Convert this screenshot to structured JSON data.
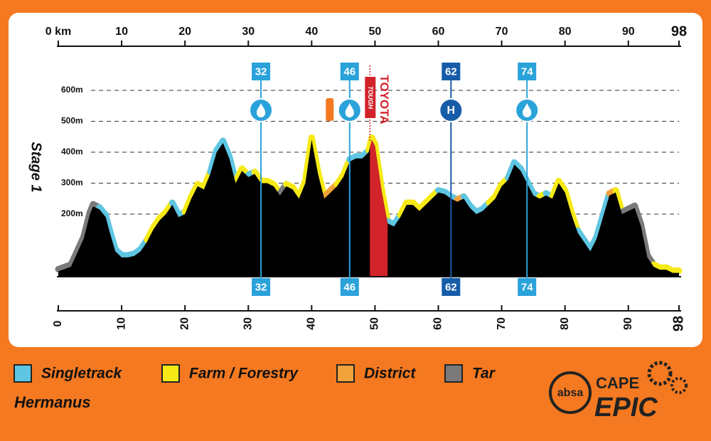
{
  "chart_data": {
    "type": "elevation-profile",
    "stage": "Stage 1",
    "location": "Hermanus",
    "xlim": [
      0,
      98
    ],
    "ylim": [
      0,
      745
    ],
    "xticks_top": [
      {
        "value": 0,
        "label": "0 km"
      },
      10,
      20,
      30,
      40,
      50,
      60,
      70,
      80,
      90,
      98
    ],
    "xticks": [
      0,
      10,
      20,
      30,
      40,
      50,
      60,
      70,
      80,
      90,
      98
    ],
    "yticks": [
      {
        "value": 200,
        "label": "200m"
      },
      {
        "value": 300,
        "label": "300m"
      },
      {
        "value": 400,
        "label": "400m"
      },
      {
        "value": 500,
        "label": "500m"
      },
      {
        "value": 600,
        "label": "600m"
      }
    ],
    "grid": true,
    "series": [
      {
        "name": "Singletrack",
        "color": "#5ec6e2"
      },
      {
        "name": "Farm / Forestry",
        "color": "#f6ea16"
      },
      {
        "name": "District",
        "color": "#f2a23a"
      },
      {
        "name": "Tar",
        "color": "#7a7a7a"
      }
    ],
    "x": [
      0,
      2,
      4,
      5,
      5.5,
      6.5,
      7.5,
      8,
      9,
      10,
      11,
      12,
      13,
      14,
      15,
      16,
      17,
      18,
      19,
      20,
      21,
      22,
      23,
      24,
      25,
      26,
      27,
      28,
      29,
      30,
      31,
      32,
      33,
      34,
      35,
      36,
      37,
      38,
      39,
      40,
      41,
      42,
      43,
      44,
      45,
      46,
      47,
      48,
      49,
      49.5,
      50,
      51,
      52,
      53,
      54,
      55,
      56,
      57,
      58,
      59,
      60,
      61,
      62,
      63,
      64,
      65,
      66,
      67,
      68,
      69,
      70,
      71,
      72,
      73,
      74,
      75,
      76,
      77,
      78,
      79,
      80,
      81,
      82,
      83,
      84,
      85,
      86,
      87,
      88,
      89,
      90,
      91,
      92,
      93,
      94,
      95,
      96,
      97,
      98
    ],
    "values": [
      15,
      30,
      120,
      200,
      225,
      215,
      190,
      150,
      80,
      60,
      60,
      65,
      80,
      110,
      150,
      180,
      200,
      230,
      190,
      200,
      250,
      290,
      280,
      330,
      400,
      430,
      380,
      300,
      340,
      320,
      330,
      300,
      300,
      290,
      260,
      290,
      280,
      250,
      300,
      440,
      330,
      250,
      270,
      290,
      320,
      370,
      380,
      380,
      400,
      440,
      420,
      280,
      170,
      160,
      190,
      230,
      230,
      210,
      230,
      250,
      270,
      265,
      250,
      240,
      250,
      220,
      200,
      210,
      230,
      250,
      290,
      310,
      360,
      340,
      300,
      260,
      250,
      260,
      250,
      300,
      270,
      200,
      140,
      110,
      80,
      120,
      190,
      260,
      270,
      200,
      210,
      220,
      160,
      60,
      30,
      20,
      20,
      10,
      10
    ],
    "surface": [
      "Tar",
      "Tar",
      "Tar",
      "Tar",
      "Tar",
      "Singletrack",
      "Singletrack",
      "Singletrack",
      "Singletrack",
      "Singletrack",
      "Singletrack",
      "Singletrack",
      "Singletrack",
      "Farm / Forestry",
      "Farm / Forestry",
      "Farm / Forestry",
      "Farm / Forestry",
      "Singletrack",
      "Singletrack",
      "Farm / Forestry",
      "Farm / Forestry",
      "Farm / Forestry",
      "Farm / Forestry",
      "Singletrack",
      "Singletrack",
      "Singletrack",
      "Singletrack",
      "Farm / Forestry",
      "Farm / Forestry",
      "Singletrack",
      "Farm / Forestry",
      "Farm / Forestry",
      "Farm / Forestry",
      "Farm / Forestry",
      "Tar",
      "Farm / Forestry",
      "Farm / Forestry",
      "Farm / Forestry",
      "Farm / Forestry",
      "Farm / Forestry",
      "Farm / Forestry",
      "District",
      "District",
      "Farm / Forestry",
      "Farm / Forestry",
      "Singletrack",
      "Singletrack",
      "Singletrack",
      "Farm / Forestry",
      "Farm / Forestry",
      "Farm / Forestry",
      "Farm / Forestry",
      "Singletrack",
      "Singletrack",
      "Farm / Forestry",
      "Farm / Forestry",
      "Farm / Forestry",
      "Farm / Forestry",
      "Farm / Forestry",
      "Farm / Forestry",
      "Singletrack",
      "Singletrack",
      "Singletrack",
      "District",
      "Singletrack",
      "Singletrack",
      "Singletrack",
      "Singletrack",
      "Farm / Forestry",
      "Farm / Forestry",
      "Farm / Forestry",
      "Singletrack",
      "Singletrack",
      "Singletrack",
      "Singletrack",
      "Singletrack",
      "Farm / Forestry",
      "Singletrack",
      "Farm / Forestry",
      "Farm / Forestry",
      "Farm / Forestry",
      "Farm / Forestry",
      "Singletrack",
      "Singletrack",
      "Singletrack",
      "Singletrack",
      "Singletrack",
      "District",
      "Farm / Forestry",
      "Tar",
      "Tar",
      "Tar",
      "Tar",
      "Tar",
      "Farm / Forestry",
      "Farm / Forestry",
      "Farm / Forestry",
      "Farm / Forestry",
      "Farm / Forestry"
    ],
    "markers": [
      {
        "x": 32,
        "kind": "water",
        "color": "#2aa2da"
      },
      {
        "x": 46,
        "kind": "water",
        "color": "#2aa2da"
      },
      {
        "x": 62,
        "kind": "hospital",
        "symbol": "H",
        "color": "#175ca8"
      },
      {
        "x": 74,
        "kind": "water",
        "color": "#2aa2da"
      }
    ],
    "feed_zone_x": 42.8,
    "toyota": {
      "start": 49.2,
      "end": 52,
      "label": "TOYOTA",
      "sublabel": "TOUGH",
      "color": "#d2232a"
    }
  },
  "logo": {
    "bank": "absa",
    "line1": "CAPE",
    "line2": "EPIC"
  }
}
